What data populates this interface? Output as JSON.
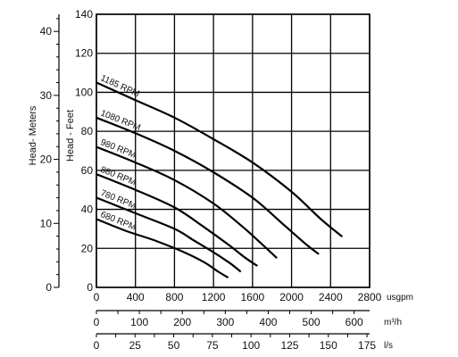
{
  "chart_data": {
    "type": "line",
    "ylabel_feet": "Head - Feet",
    "ylabel_meters": "Head- Meters",
    "feet_axis": {
      "ticks": [
        "0",
        "20",
        "40",
        "60",
        "80",
        "100",
        "120",
        "140"
      ],
      "range": [
        0,
        140
      ]
    },
    "meters_axis": {
      "ticks": [
        "0",
        "10",
        "20",
        "30",
        "40"
      ],
      "range": [
        0,
        42.67
      ]
    },
    "x_usgpm": {
      "unit": "usgpm",
      "ticks": [
        "0",
        "400",
        "800",
        "1200",
        "1600",
        "2000",
        "2400",
        "2800"
      ],
      "range": [
        0,
        2800
      ]
    },
    "x_m3h": {
      "unit": "m³/h",
      "ticks": [
        "0",
        "100",
        "200",
        "300",
        "400",
        "500",
        "600"
      ],
      "range": [
        0,
        636
      ]
    },
    "x_ls": {
      "unit": "l/s",
      "ticks": [
        "0",
        "25",
        "50",
        "75",
        "100",
        "125",
        "150",
        "175"
      ],
      "range": [
        0,
        176.7
      ]
    },
    "grid": true,
    "series": [
      {
        "name": "1185 RPM",
        "points": [
          [
            0,
            105
          ],
          [
            400,
            96
          ],
          [
            800,
            87
          ],
          [
            1200,
            76
          ],
          [
            1600,
            64
          ],
          [
            2000,
            49
          ],
          [
            2300,
            35
          ],
          [
            2520,
            26
          ]
        ]
      },
      {
        "name": "1080 RPM",
        "points": [
          [
            0,
            87
          ],
          [
            400,
            79
          ],
          [
            800,
            70
          ],
          [
            1200,
            59
          ],
          [
            1600,
            46
          ],
          [
            1900,
            33
          ],
          [
            2150,
            22
          ],
          [
            2280,
            17
          ]
        ]
      },
      {
        "name": "980 RPM",
        "points": [
          [
            0,
            72
          ],
          [
            400,
            64
          ],
          [
            800,
            55
          ],
          [
            1200,
            43
          ],
          [
            1500,
            31
          ],
          [
            1700,
            22
          ],
          [
            1850,
            15
          ]
        ]
      },
      {
        "name": "880 RPM",
        "points": [
          [
            0,
            58
          ],
          [
            400,
            50
          ],
          [
            800,
            41
          ],
          [
            1100,
            31
          ],
          [
            1350,
            22
          ],
          [
            1530,
            15
          ],
          [
            1650,
            11
          ]
        ]
      },
      {
        "name": "780 RPM",
        "points": [
          [
            0,
            46
          ],
          [
            400,
            38
          ],
          [
            800,
            30
          ],
          [
            1000,
            24
          ],
          [
            1200,
            18
          ],
          [
            1380,
            12
          ],
          [
            1480,
            8
          ]
        ]
      },
      {
        "name": "680 RPM",
        "points": [
          [
            0,
            35
          ],
          [
            300,
            29
          ],
          [
            600,
            24
          ],
          [
            900,
            18
          ],
          [
            1100,
            13
          ],
          [
            1250,
            8
          ],
          [
            1350,
            5
          ]
        ]
      }
    ]
  }
}
